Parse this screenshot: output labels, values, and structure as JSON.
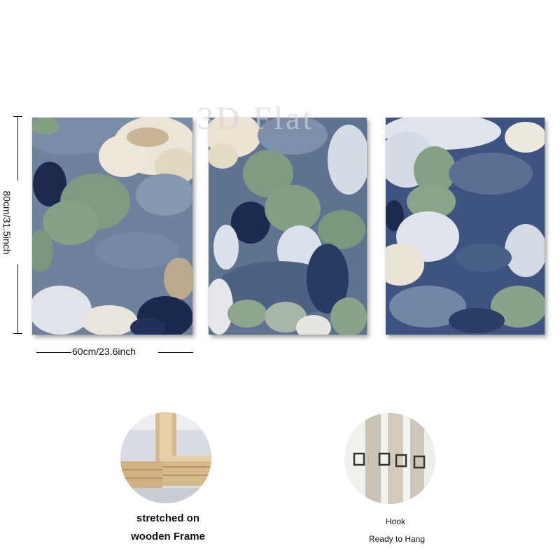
{
  "dimensions": {
    "height_label": "80cm/31.5inch",
    "width_label": "60cm/23.6inch"
  },
  "watermark": "3D Flat",
  "panels": [
    {
      "name": "left-canvas"
    },
    {
      "name": "middle-canvas"
    },
    {
      "name": "right-canvas"
    }
  ],
  "colors": {
    "slate_blue": "#6b7f9c",
    "navy": "#1f2e52",
    "sage_green": "#7f9a7f",
    "cream": "#eae3d6",
    "white_blue": "#d7dee8"
  },
  "features": {
    "frame": {
      "caption_line1": "stretched on",
      "caption_line2": "wooden Frame"
    },
    "hook": {
      "caption_line1": "Hook",
      "caption_line2": "Ready to Hang"
    }
  }
}
